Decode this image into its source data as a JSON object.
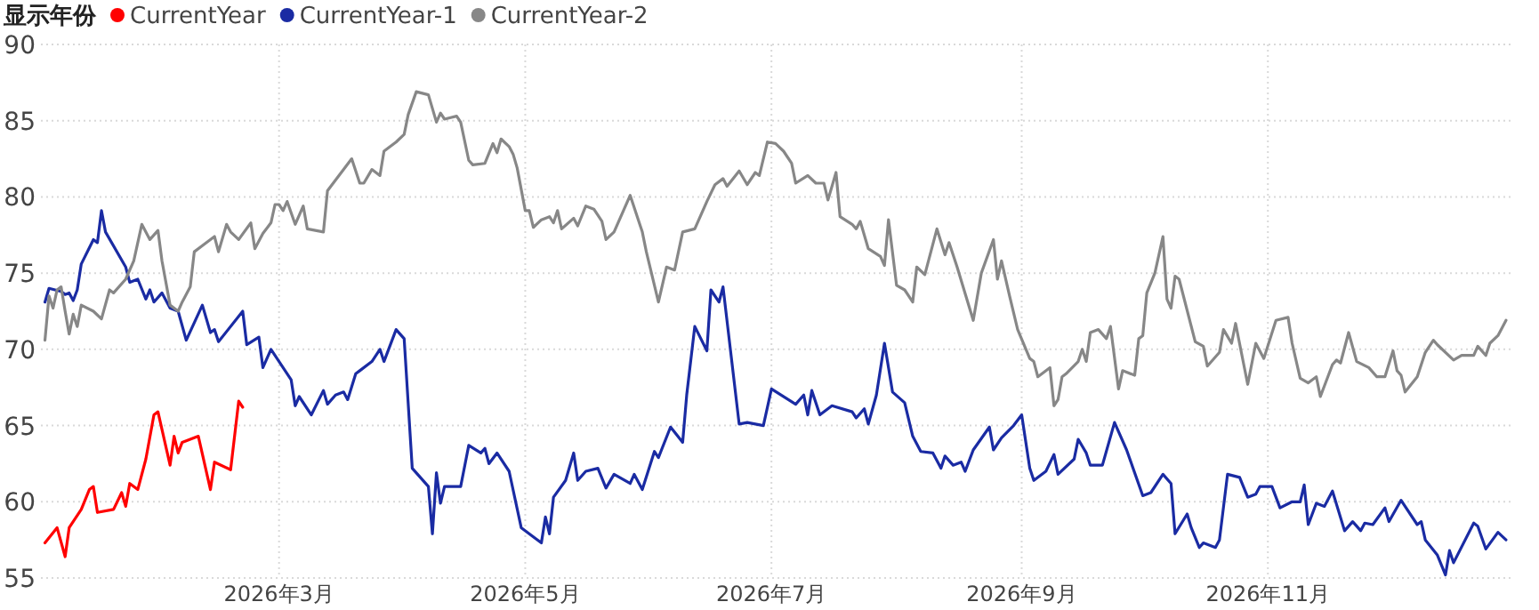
{
  "chart_data": {
    "type": "line",
    "legend_title": "显示年份",
    "legend": "top left",
    "grid": true,
    "xlim": [
      "2026-01-01",
      "2027-01-01"
    ],
    "ylim": [
      55,
      90
    ],
    "xticks": [
      {
        "value": "2026-03-01",
        "label": "2026年3月"
      },
      {
        "value": "2026-05-01",
        "label": "2026年5月"
      },
      {
        "value": "2026-07-01",
        "label": "2026年7月"
      },
      {
        "value": "2026-09-01",
        "label": "2026年9月"
      },
      {
        "value": "2026-11-01",
        "label": "2026年11月"
      }
    ],
    "yticks": [
      55,
      60,
      65,
      70,
      75,
      80,
      85,
      90
    ],
    "series": [
      {
        "name": "CurrentYear",
        "color": "#ff0000",
        "x": [
          "2026-01-02",
          "2026-01-05",
          "2026-01-07",
          "2026-01-08",
          "2026-01-11",
          "2026-01-13",
          "2026-01-14",
          "2026-01-15",
          "2026-01-19",
          "2026-01-21",
          "2026-01-22",
          "2026-01-23",
          "2026-01-25",
          "2026-01-27",
          "2026-01-29",
          "2026-01-30",
          "2026-02-02",
          "2026-02-03",
          "2026-02-04",
          "2026-02-05",
          "2026-02-09",
          "2026-02-12",
          "2026-02-13",
          "2026-02-17",
          "2026-02-19",
          "2026-02-20"
        ],
        "values": [
          57.3,
          58.3,
          56.4,
          58.3,
          59.5,
          60.8,
          61.0,
          59.3,
          59.5,
          60.6,
          59.7,
          61.2,
          60.8,
          62.8,
          65.7,
          65.9,
          62.4,
          64.3,
          63.2,
          63.9,
          64.3,
          60.8,
          62.6,
          62.1,
          66.6,
          66.2
        ]
      },
      {
        "name": "CurrentYear-1",
        "color": "#1a2ba3",
        "x": [
          "2026-01-02",
          "2026-01-03",
          "2026-01-06",
          "2026-01-07",
          "2026-01-08",
          "2026-01-09",
          "2026-01-10",
          "2026-01-11",
          "2026-01-14",
          "2026-01-15",
          "2026-01-16",
          "2026-01-17",
          "2026-01-22",
          "2026-01-23",
          "2026-01-25",
          "2026-01-27",
          "2026-01-28",
          "2026-01-29",
          "2026-01-31",
          "2026-02-02",
          "2026-02-04",
          "2026-02-06",
          "2026-02-10",
          "2026-02-12",
          "2026-02-13",
          "2026-02-14",
          "2026-02-20",
          "2026-02-21",
          "2026-02-24",
          "2026-02-25",
          "2026-02-27",
          "2026-03-04",
          "2026-03-05",
          "2026-03-06",
          "2026-03-09",
          "2026-03-12",
          "2026-03-13",
          "2026-03-15",
          "2026-03-17",
          "2026-03-18",
          "2026-03-20",
          "2026-03-21",
          "2026-03-24",
          "2026-03-26",
          "2026-03-27",
          "2026-03-30",
          "2026-04-01",
          "2026-04-03",
          "2026-04-07",
          "2026-04-08",
          "2026-04-09",
          "2026-04-10",
          "2026-04-11",
          "2026-04-15",
          "2026-04-17",
          "2026-04-20",
          "2026-04-21",
          "2026-04-22",
          "2026-04-24",
          "2026-04-27",
          "2026-04-30",
          "2026-05-03",
          "2026-05-05",
          "2026-05-06",
          "2026-05-07",
          "2026-05-08",
          "2026-05-11",
          "2026-05-13",
          "2026-05-14",
          "2026-05-16",
          "2026-05-19",
          "2026-05-21",
          "2026-05-23",
          "2026-05-27",
          "2026-05-28",
          "2026-05-30",
          "2026-06-02",
          "2026-06-03",
          "2026-06-06",
          "2026-06-09",
          "2026-06-10",
          "2026-06-12",
          "2026-06-15",
          "2026-06-16",
          "2026-06-18",
          "2026-06-19",
          "2026-06-23",
          "2026-06-25",
          "2026-06-29",
          "2026-07-01",
          "2026-07-07",
          "2026-07-09",
          "2026-07-10",
          "2026-07-11",
          "2026-07-13",
          "2026-07-16",
          "2026-07-21",
          "2026-07-22",
          "2026-07-24",
          "2026-07-25",
          "2026-07-27",
          "2026-07-29",
          "2026-07-31",
          "2026-08-03",
          "2026-08-05",
          "2026-08-07",
          "2026-08-10",
          "2026-08-12",
          "2026-08-13",
          "2026-08-15",
          "2026-08-17",
          "2026-08-18",
          "2026-08-20",
          "2026-08-24",
          "2026-08-25",
          "2026-08-27",
          "2026-08-30",
          "2026-09-01",
          "2026-09-03",
          "2026-09-04",
          "2026-09-07",
          "2026-09-09",
          "2026-09-10",
          "2026-09-14",
          "2026-09-15",
          "2026-09-17",
          "2026-09-18",
          "2026-09-21",
          "2026-09-24",
          "2026-09-27",
          "2026-10-01",
          "2026-10-03",
          "2026-10-06",
          "2026-10-08",
          "2026-10-09",
          "2026-10-12",
          "2026-10-13",
          "2026-10-15",
          "2026-10-16",
          "2026-10-19",
          "2026-10-20",
          "2026-10-22",
          "2026-10-25",
          "2026-10-27",
          "2026-10-29",
          "2026-10-30",
          "2026-11-02",
          "2026-11-04",
          "2026-11-07",
          "2026-11-09",
          "2026-11-10",
          "2026-11-11",
          "2026-11-13",
          "2026-11-15",
          "2026-11-17",
          "2026-11-20",
          "2026-11-22",
          "2026-11-24",
          "2026-11-25",
          "2026-11-27",
          "2026-11-30",
          "2026-12-01",
          "2026-12-04",
          "2026-12-08",
          "2026-12-09",
          "2026-12-10",
          "2026-12-13",
          "2026-12-15",
          "2026-12-16",
          "2026-12-17",
          "2026-12-22",
          "2026-12-23",
          "2026-12-25",
          "2026-12-28",
          "2026-12-30"
        ],
        "values": [
          73.1,
          74.0,
          73.8,
          73.6,
          73.7,
          73.2,
          73.9,
          75.6,
          77.2,
          77.0,
          79.1,
          77.7,
          75.4,
          74.4,
          74.6,
          73.3,
          73.9,
          73.1,
          73.7,
          72.7,
          72.5,
          70.6,
          72.9,
          71.1,
          71.3,
          70.5,
          72.5,
          70.3,
          70.8,
          68.8,
          70.0,
          68.0,
          66.3,
          66.9,
          65.7,
          67.3,
          66.4,
          67.0,
          67.2,
          66.7,
          68.4,
          68.6,
          69.2,
          70.0,
          69.2,
          71.3,
          70.7,
          62.2,
          61.0,
          57.9,
          61.9,
          59.9,
          61.0,
          61.0,
          63.7,
          63.2,
          63.5,
          62.5,
          63.2,
          62.0,
          58.3,
          57.7,
          57.3,
          59.0,
          57.9,
          60.3,
          61.4,
          63.2,
          61.4,
          62.0,
          62.2,
          60.9,
          61.8,
          61.2,
          61.8,
          60.8,
          63.3,
          62.9,
          64.9,
          63.9,
          67.0,
          71.5,
          69.9,
          73.9,
          73.1,
          74.1,
          65.1,
          65.2,
          65.0,
          67.4,
          66.4,
          67.0,
          65.7,
          67.3,
          65.7,
          66.3,
          65.9,
          65.5,
          66.1,
          65.1,
          67.0,
          70.4,
          67.2,
          66.5,
          64.3,
          63.3,
          63.2,
          62.2,
          63.0,
          62.4,
          62.6,
          62.0,
          63.4,
          64.9,
          63.4,
          64.2,
          65.0,
          65.7,
          62.2,
          61.4,
          62.0,
          63.1,
          61.8,
          62.8,
          64.1,
          63.2,
          62.4,
          62.4,
          65.2,
          63.4,
          60.4,
          60.6,
          61.8,
          61.2,
          57.9,
          59.2,
          58.3,
          57.0,
          57.3,
          57.0,
          57.5,
          61.8,
          61.6,
          60.3,
          60.5,
          61.0,
          61.0,
          59.6,
          60.0,
          60.0,
          61.1,
          58.5,
          59.9,
          59.7,
          60.7,
          58.1,
          58.7,
          58.1,
          58.6,
          58.5,
          59.6,
          58.7,
          60.1,
          58.5,
          58.7,
          57.5,
          56.5,
          55.2,
          56.8,
          56.0,
          58.6,
          58.4,
          56.9,
          58.0,
          57.5
        ]
      },
      {
        "name": "CurrentYear-2",
        "color": "#878787",
        "x": [
          "2026-01-02",
          "2026-01-03",
          "2026-01-04",
          "2026-01-05",
          "2026-01-06",
          "2026-01-07",
          "2026-01-08",
          "2026-01-09",
          "2026-01-10",
          "2026-01-11",
          "2026-01-14",
          "2026-01-16",
          "2026-01-18",
          "2026-01-19",
          "2026-01-22",
          "2026-01-24",
          "2026-01-26",
          "2026-01-28",
          "2026-01-30",
          "2026-01-31",
          "2026-02-02",
          "2026-02-04",
          "2026-02-05",
          "2026-02-07",
          "2026-02-08",
          "2026-02-10",
          "2026-02-13",
          "2026-02-14",
          "2026-02-16",
          "2026-02-17",
          "2026-02-19",
          "2026-02-22",
          "2026-02-23",
          "2026-02-25",
          "2026-02-27",
          "2026-02-28",
          "2026-03-01",
          "2026-03-02",
          "2026-03-03",
          "2026-03-05",
          "2026-03-07",
          "2026-03-08",
          "2026-03-12",
          "2026-03-13",
          "2026-03-15",
          "2026-03-17",
          "2026-03-19",
          "2026-03-21",
          "2026-03-22",
          "2026-03-24",
          "2026-03-26",
          "2026-03-27",
          "2026-03-30",
          "2026-04-01",
          "2026-04-02",
          "2026-04-04",
          "2026-04-07",
          "2026-04-09",
          "2026-04-10",
          "2026-04-11",
          "2026-04-14",
          "2026-04-15",
          "2026-04-17",
          "2026-04-18",
          "2026-04-21",
          "2026-04-23",
          "2026-04-24",
          "2026-04-25",
          "2026-04-27",
          "2026-04-28",
          "2026-04-29",
          "2026-05-01",
          "2026-05-02",
          "2026-05-03",
          "2026-05-05",
          "2026-05-07",
          "2026-05-08",
          "2026-05-09",
          "2026-05-10",
          "2026-05-13",
          "2026-05-14",
          "2026-05-16",
          "2026-05-18",
          "2026-05-20",
          "2026-05-21",
          "2026-05-23",
          "2026-05-27",
          "2026-05-30",
          "2026-05-31",
          "2026-06-03",
          "2026-06-05",
          "2026-06-07",
          "2026-06-09",
          "2026-06-12",
          "2026-06-15",
          "2026-06-17",
          "2026-06-19",
          "2026-06-20",
          "2026-06-23",
          "2026-06-25",
          "2026-06-27",
          "2026-06-28",
          "2026-06-30",
          "2026-07-02",
          "2026-07-04",
          "2026-07-06",
          "2026-07-07",
          "2026-07-10",
          "2026-07-12",
          "2026-07-14",
          "2026-07-15",
          "2026-07-17",
          "2026-07-18",
          "2026-07-21",
          "2026-07-22",
          "2026-07-23",
          "2026-07-25",
          "2026-07-28",
          "2026-07-29",
          "2026-07-30",
          "2026-08-01",
          "2026-08-03",
          "2026-08-05",
          "2026-08-06",
          "2026-08-08",
          "2026-08-11",
          "2026-08-13",
          "2026-08-14",
          "2026-08-16",
          "2026-08-20",
          "2026-08-22",
          "2026-08-25",
          "2026-08-26",
          "2026-08-27",
          "2026-08-29",
          "2026-08-31",
          "2026-09-03",
          "2026-09-04",
          "2026-09-05",
          "2026-09-08",
          "2026-09-09",
          "2026-09-10",
          "2026-09-11",
          "2026-09-12",
          "2026-09-15",
          "2026-09-16",
          "2026-09-17",
          "2026-09-18",
          "2026-09-20",
          "2026-09-22",
          "2026-09-23",
          "2026-09-25",
          "2026-09-26",
          "2026-09-29",
          "2026-09-30",
          "2026-10-01",
          "2026-10-02",
          "2026-10-04",
          "2026-10-06",
          "2026-10-07",
          "2026-10-08",
          "2026-10-09",
          "2026-10-10",
          "2026-10-14",
          "2026-10-16",
          "2026-10-17",
          "2026-10-20",
          "2026-10-21",
          "2026-10-23",
          "2026-10-24",
          "2026-10-27",
          "2026-10-29",
          "2026-10-31",
          "2026-11-03",
          "2026-11-06",
          "2026-11-07",
          "2026-11-09",
          "2026-11-11",
          "2026-11-13",
          "2026-11-14",
          "2026-11-17",
          "2026-11-18",
          "2026-11-19",
          "2026-11-21",
          "2026-11-23",
          "2026-11-26",
          "2026-11-28",
          "2026-11-30",
          "2026-12-02",
          "2026-12-03",
          "2026-12-04",
          "2026-12-05",
          "2026-12-08",
          "2026-12-10",
          "2026-12-12",
          "2026-12-13",
          "2026-12-17",
          "2026-12-19",
          "2026-12-22",
          "2026-12-23",
          "2026-12-25",
          "2026-12-26",
          "2026-12-28",
          "2026-12-30"
        ],
        "values": [
          70.6,
          73.5,
          72.7,
          73.9,
          74.1,
          72.5,
          71.0,
          72.3,
          71.5,
          72.9,
          72.5,
          72.0,
          73.9,
          73.7,
          74.6,
          75.8,
          78.2,
          77.2,
          77.8,
          75.8,
          72.9,
          72.5,
          73.1,
          74.1,
          76.4,
          76.8,
          77.4,
          76.4,
          78.2,
          77.7,
          77.2,
          78.3,
          76.6,
          77.6,
          78.3,
          79.5,
          79.5,
          79.1,
          79.7,
          78.2,
          79.4,
          77.9,
          77.7,
          80.4,
          81.1,
          81.8,
          82.5,
          80.9,
          80.9,
          81.8,
          81.4,
          83.0,
          83.6,
          84.1,
          85.4,
          86.9,
          86.7,
          84.9,
          85.5,
          85.1,
          85.3,
          84.9,
          82.4,
          82.1,
          82.2,
          83.5,
          82.9,
          83.8,
          83.3,
          82.8,
          81.9,
          79.1,
          79.1,
          78.0,
          78.5,
          78.7,
          78.3,
          79.1,
          77.9,
          78.6,
          78.1,
          79.4,
          79.2,
          78.4,
          77.2,
          77.7,
          80.1,
          77.7,
          76.4,
          73.1,
          75.4,
          75.2,
          77.7,
          77.9,
          79.7,
          80.8,
          81.2,
          80.7,
          81.7,
          80.8,
          81.6,
          81.4,
          83.6,
          83.5,
          83.0,
          82.2,
          80.9,
          81.4,
          80.9,
          80.9,
          79.8,
          81.6,
          78.7,
          78.2,
          77.9,
          78.4,
          76.6,
          76.1,
          75.5,
          78.5,
          74.2,
          73.9,
          73.1,
          75.4,
          74.9,
          77.9,
          76.2,
          77.0,
          75.4,
          71.9,
          75.0,
          77.2,
          74.6,
          75.8,
          73.5,
          71.3,
          69.4,
          69.2,
          68.2,
          68.8,
          66.3,
          66.7,
          68.2,
          68.4,
          69.2,
          70.0,
          69.2,
          71.1,
          71.3,
          70.7,
          71.5,
          67.4,
          68.6,
          68.3,
          70.7,
          70.9,
          73.7,
          75.0,
          77.4,
          73.3,
          72.7,
          74.8,
          74.6,
          70.5,
          70.2,
          68.9,
          69.8,
          71.3,
          70.4,
          71.7,
          67.7,
          70.4,
          69.4,
          71.9,
          72.1,
          70.4,
          68.1,
          67.8,
          68.2,
          66.9,
          69.0,
          69.3,
          69.1,
          71.1,
          69.2,
          68.8,
          68.2,
          68.2,
          69.9,
          68.6,
          68.3,
          67.2,
          68.2,
          69.8,
          70.6,
          70.3,
          69.3,
          69.6,
          69.6,
          70.2,
          69.6,
          70.4,
          70.9,
          71.9
        ]
      }
    ]
  }
}
